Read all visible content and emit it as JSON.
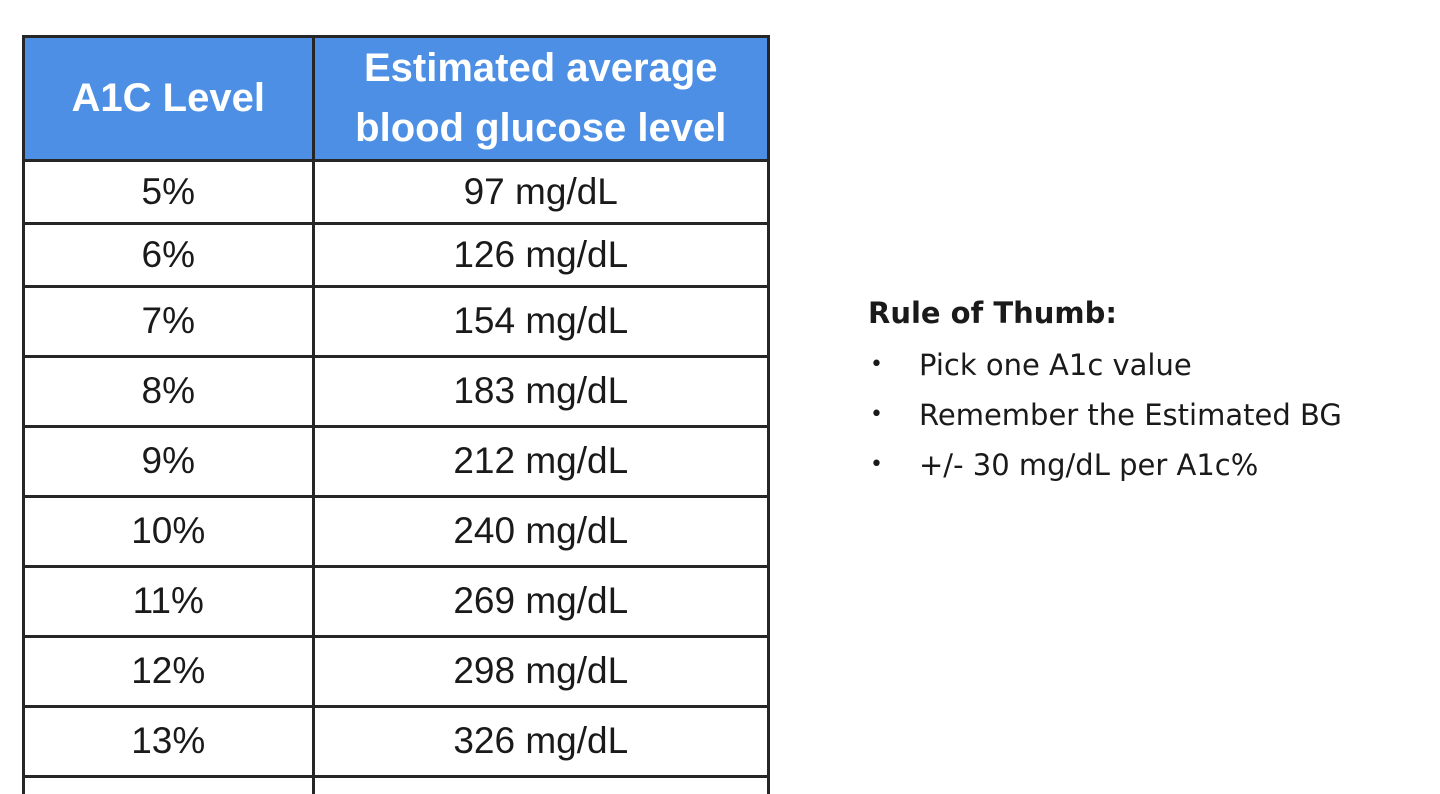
{
  "table": {
    "headers": {
      "a1c_level": "A1C Level",
      "estimated_bg_line1": "Estimated average",
      "estimated_bg_line2": "blood glucose level"
    },
    "rows": [
      {
        "a1c": "5%",
        "eag": "97 mg/dL"
      },
      {
        "a1c": "6%",
        "eag": "126 mg/dL"
      },
      {
        "a1c": "7%",
        "eag": "154 mg/dL"
      },
      {
        "a1c": "8%",
        "eag": "183 mg/dL"
      },
      {
        "a1c": "9%",
        "eag": "212 mg/dL"
      },
      {
        "a1c": "10%",
        "eag": "240 mg/dL"
      },
      {
        "a1c": "11%",
        "eag": "269 mg/dL"
      },
      {
        "a1c": "12%",
        "eag": "298 mg/dL"
      },
      {
        "a1c": "13%",
        "eag": "326 mg/dL"
      }
    ],
    "header_color": "#4c8fe4"
  },
  "rule_of_thumb": {
    "title": "Rule of Thumb:",
    "bullet": "•",
    "items": [
      "Pick one A1c value",
      "Remember the Estimated BG",
      "+/- 30 mg/dL per A1c%"
    ]
  }
}
